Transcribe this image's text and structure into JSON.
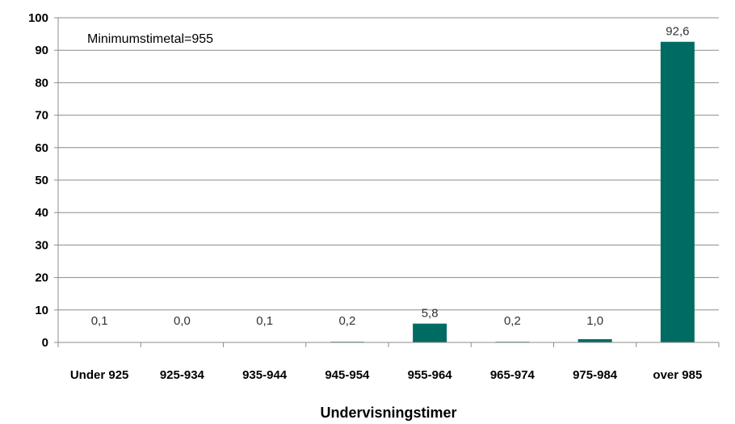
{
  "chart_data": {
    "type": "bar",
    "xlabel": "Undervisningstimer",
    "ylabel": "",
    "annotation": "Minimumstimetal=955",
    "categories": [
      "Under 925",
      "925-934",
      "935-944",
      "945-954",
      "955-964",
      "965-974",
      "975-984",
      "over 985"
    ],
    "values": [
      0.1,
      0.0,
      0.1,
      0.2,
      5.8,
      0.2,
      1.0,
      92.6
    ],
    "data_labels": [
      "0,1",
      "0,0",
      "0,1",
      "0,2",
      "5,8",
      "0,2",
      "1,0",
      "92,6"
    ],
    "ylim": [
      0,
      100
    ],
    "yticks": [
      0,
      10,
      20,
      30,
      40,
      50,
      60,
      70,
      80,
      90,
      100
    ],
    "grid": true,
    "legend": "none",
    "bar_color": "#006B63"
  }
}
